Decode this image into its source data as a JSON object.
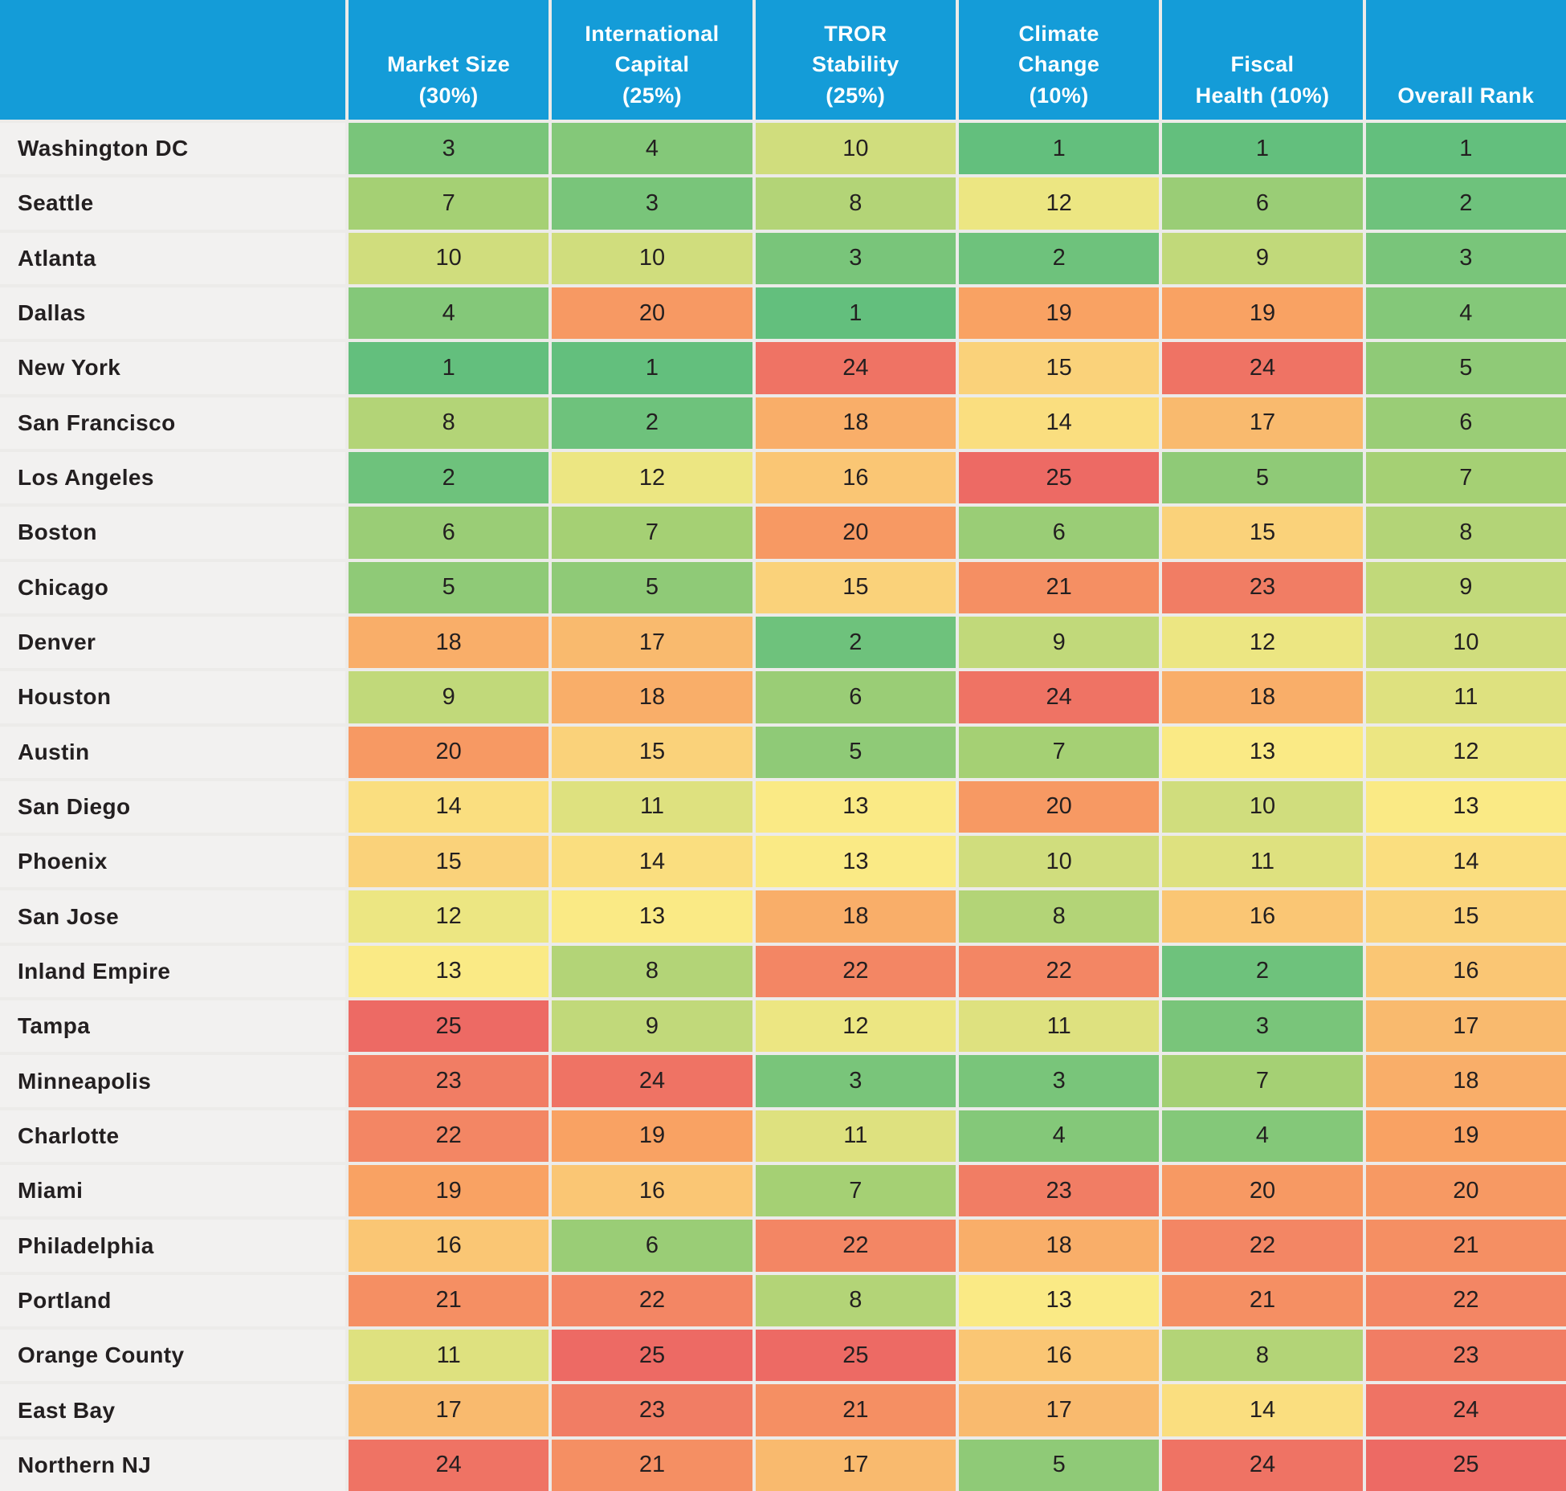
{
  "table": {
    "corner_label": "",
    "columns_display": [
      "Market Size\n(30%)",
      "International\nCapital\n(25%)",
      "TROR\nStability\n(25%)",
      "Climate\nChange\n(10%)",
      "Fiscal\nHealth (10%)",
      "Overall Rank"
    ]
  },
  "colors": {
    "header_bg": "#149cd8",
    "header_text": "#ffffff",
    "row_label_bg": "#f2f1f0",
    "cell_text": "#231f20",
    "grid_gap": "#ecebe9"
  },
  "heatmap_stops": [
    {
      "rank": 1,
      "color": "#63bf7d"
    },
    {
      "rank": 7,
      "color": "#a5d074"
    },
    {
      "rank": 13,
      "color": "#faea85"
    },
    {
      "rank": 19,
      "color": "#f9a263"
    },
    {
      "rank": 25,
      "color": "#ed6a64"
    }
  ],
  "chart_data": {
    "type": "heatmap",
    "columns": [
      "Market Size (30%)",
      "International Capital (25%)",
      "TROR Stability (25%)",
      "Climate Change (10%)",
      "Fiscal Health (10%)",
      "Overall Rank"
    ],
    "rows": [
      "Washington DC",
      "Seattle",
      "Atlanta",
      "Dallas",
      "New York",
      "San Francisco",
      "Los Angeles",
      "Boston",
      "Chicago",
      "Denver",
      "Houston",
      "Austin",
      "San Diego",
      "Phoenix",
      "San Jose",
      "Inland Empire",
      "Tampa",
      "Minneapolis",
      "Charlotte",
      "Miami",
      "Philadelphia",
      "Portland",
      "Orange County",
      "East Bay",
      "Northern NJ"
    ],
    "values": [
      [
        3,
        4,
        10,
        1,
        1,
        1
      ],
      [
        7,
        3,
        8,
        12,
        6,
        2
      ],
      [
        10,
        10,
        3,
        2,
        9,
        3
      ],
      [
        4,
        20,
        1,
        19,
        19,
        4
      ],
      [
        1,
        1,
        24,
        15,
        24,
        5
      ],
      [
        8,
        2,
        18,
        14,
        17,
        6
      ],
      [
        2,
        12,
        16,
        25,
        5,
        7
      ],
      [
        6,
        7,
        20,
        6,
        15,
        8
      ],
      [
        5,
        5,
        15,
        21,
        23,
        9
      ],
      [
        18,
        17,
        2,
        9,
        12,
        10
      ],
      [
        9,
        18,
        6,
        24,
        18,
        11
      ],
      [
        20,
        15,
        5,
        7,
        13,
        12
      ],
      [
        14,
        11,
        13,
        20,
        10,
        13
      ],
      [
        15,
        14,
        13,
        10,
        11,
        14
      ],
      [
        12,
        13,
        18,
        8,
        16,
        15
      ],
      [
        13,
        8,
        22,
        22,
        2,
        16
      ],
      [
        25,
        9,
        12,
        11,
        3,
        17
      ],
      [
        23,
        24,
        3,
        3,
        7,
        18
      ],
      [
        22,
        19,
        11,
        4,
        4,
        19
      ],
      [
        19,
        16,
        7,
        23,
        20,
        20
      ],
      [
        16,
        6,
        22,
        18,
        22,
        21
      ],
      [
        21,
        22,
        8,
        13,
        21,
        22
      ],
      [
        11,
        25,
        25,
        16,
        8,
        23
      ],
      [
        17,
        23,
        21,
        17,
        14,
        24
      ],
      [
        24,
        21,
        17,
        5,
        24,
        25
      ]
    ],
    "scale": {
      "min": 1,
      "max": 25,
      "meaning": "rank 1 = best (green) to rank 25 = worst (red)"
    }
  }
}
